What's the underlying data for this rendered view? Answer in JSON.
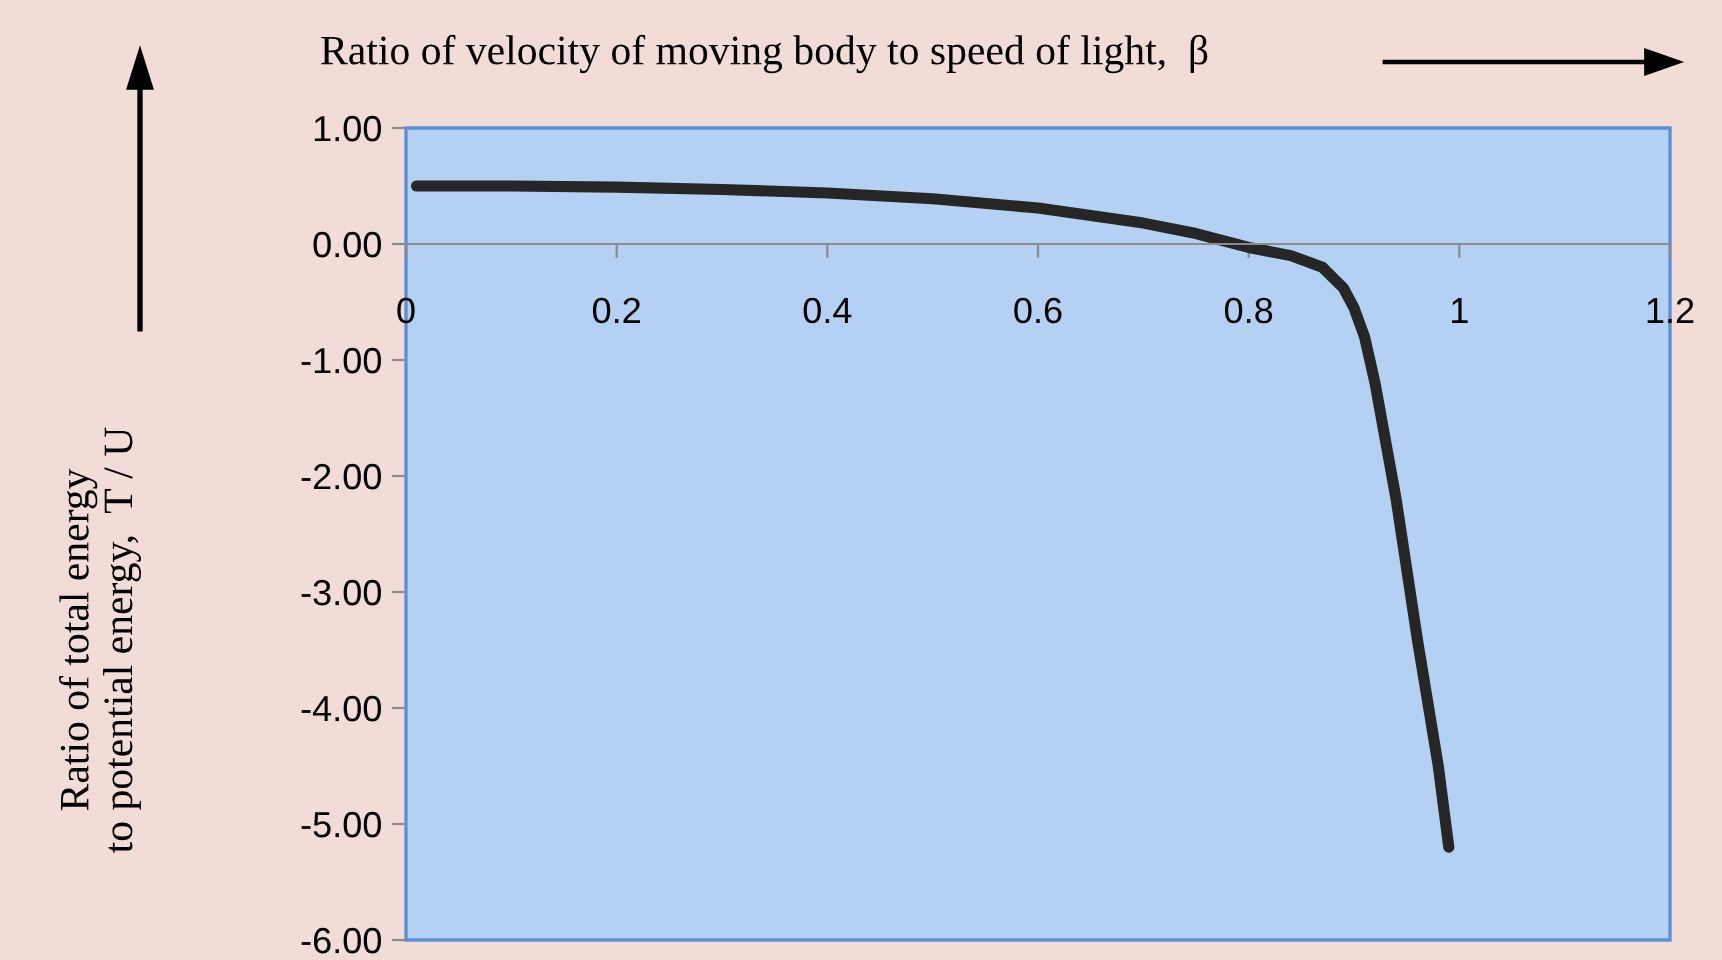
{
  "chart_data": {
    "type": "line",
    "xlabel": "Ratio of velocity of moving body to speed of light,  β",
    "ylabel": "Ratio of total energy\nto potential energy,  T / U",
    "xlim": [
      0,
      1.2
    ],
    "xticks": [
      0,
      0.2,
      0.4,
      0.6,
      0.8,
      1,
      1.2
    ],
    "ylim": [
      -6,
      1
    ],
    "yticks": [
      {
        "value": 1,
        "label": "1.00"
      },
      {
        "value": 0,
        "label": "0.00"
      },
      {
        "value": -1,
        "label": "-1.00"
      },
      {
        "value": -2,
        "label": "-2.00"
      },
      {
        "value": -3,
        "label": "-3.00"
      },
      {
        "value": -4,
        "label": "-4.00"
      },
      {
        "value": -5,
        "label": "-5.00"
      },
      {
        "value": -6,
        "label": "-6.00"
      }
    ],
    "grid": false,
    "marker": "none",
    "line_style": "solid",
    "series": [
      {
        "color": "#262626",
        "x": [
          0.01,
          0.1,
          0.2,
          0.3,
          0.4,
          0.5,
          0.6,
          0.7,
          0.75,
          0.8,
          0.84,
          0.87,
          0.89,
          0.9,
          0.91,
          0.92,
          0.94,
          0.96,
          0.98,
          0.99
        ],
        "values": [
          0.5,
          0.5,
          0.49,
          0.47,
          0.44,
          0.39,
          0.31,
          0.18,
          0.09,
          -0.03,
          -0.1,
          -0.2,
          -0.38,
          -0.55,
          -0.8,
          -1.2,
          -2.2,
          -3.4,
          -4.5,
          -5.2
        ]
      }
    ]
  }
}
